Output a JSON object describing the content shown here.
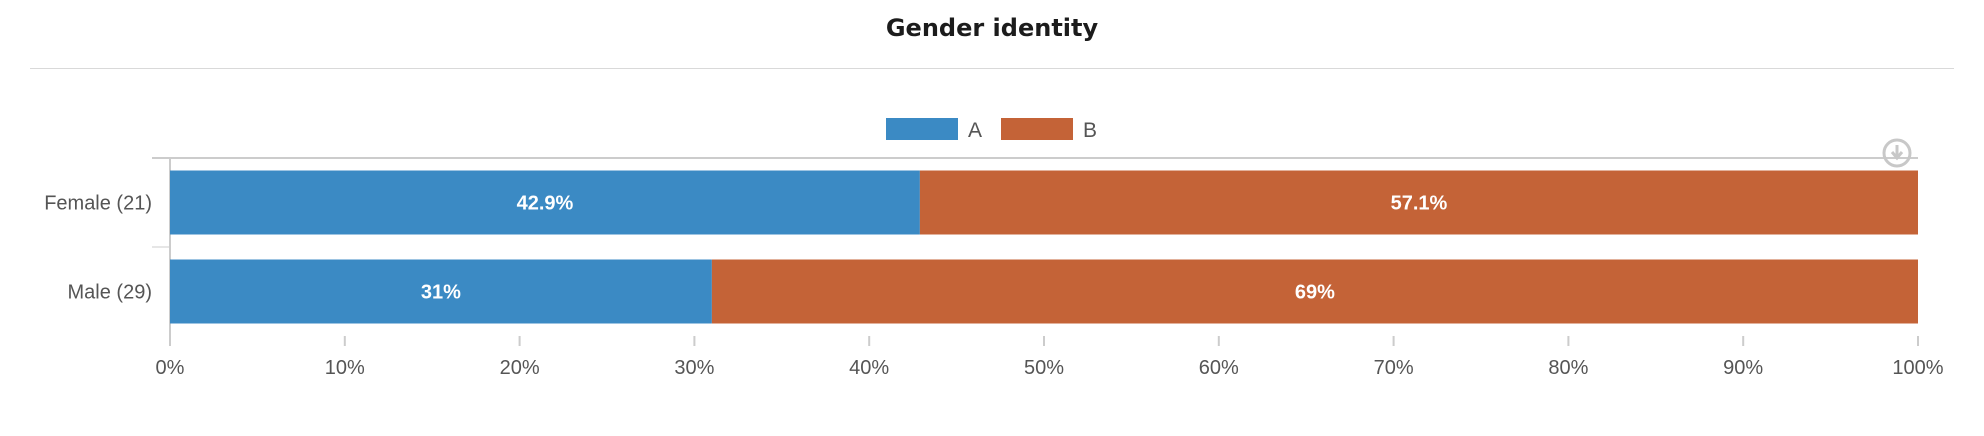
{
  "title": "Gender identity",
  "colors": {
    "A": "#3b8ac4",
    "B": "#c46337",
    "axis": "#cccccc",
    "grid": "#e6e6e6",
    "label": "#555555"
  },
  "icons": {
    "download": "download-icon"
  },
  "chart_data": {
    "type": "bar",
    "orientation": "horizontal",
    "stacked": "percent",
    "categories": [
      "Female (21)",
      "Male (29)"
    ],
    "series": [
      {
        "name": "A",
        "values": [
          42.9,
          31
        ],
        "labels": [
          "42.9%",
          "31%"
        ]
      },
      {
        "name": "B",
        "values": [
          57.1,
          69
        ],
        "labels": [
          "57.1%",
          "69%"
        ]
      }
    ],
    "xlim": [
      0,
      100
    ],
    "xticks": [
      "0%",
      "10%",
      "20%",
      "30%",
      "40%",
      "50%",
      "60%",
      "70%",
      "80%",
      "90%",
      "100%"
    ],
    "legend": "top-center",
    "grid": false
  }
}
